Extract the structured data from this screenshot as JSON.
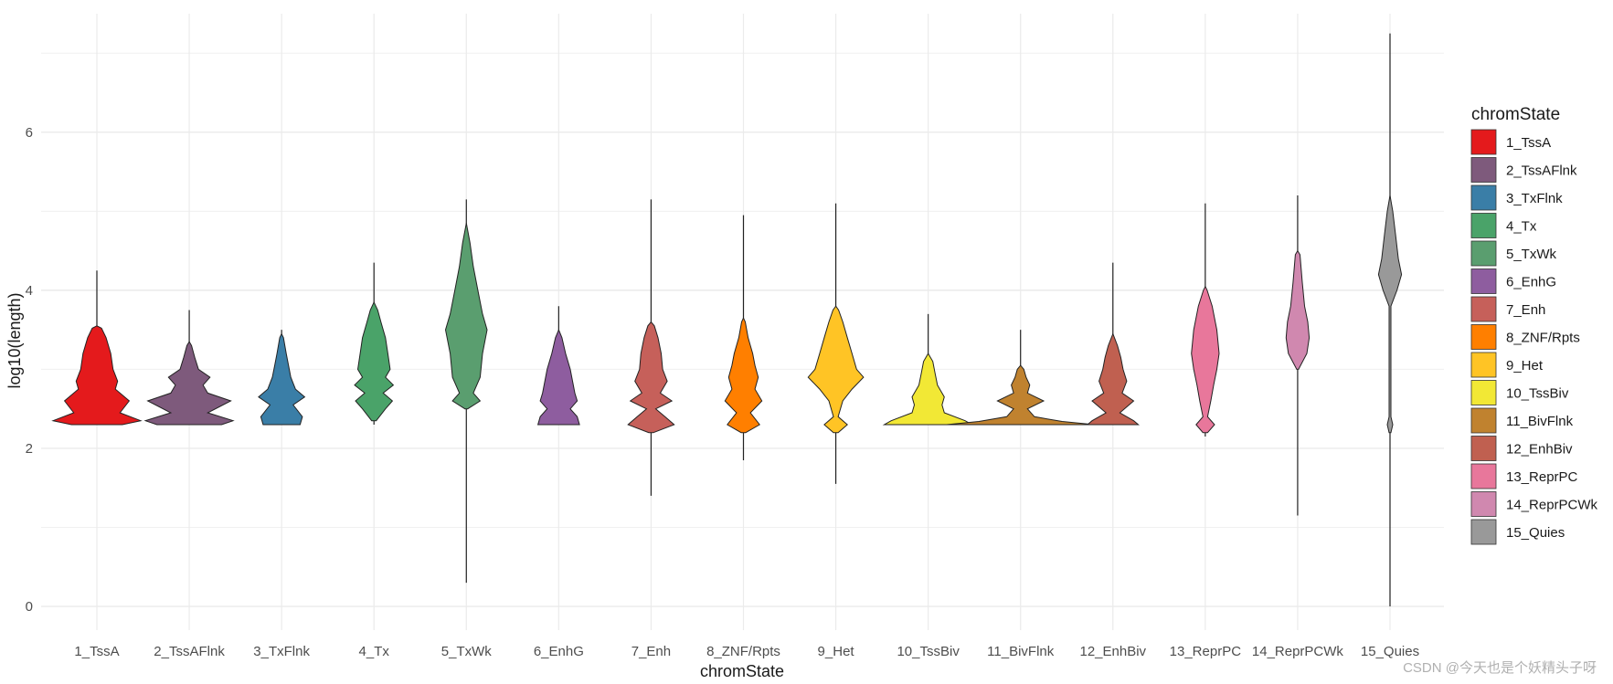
{
  "chart_data": {
    "type": "violin",
    "xlabel": "chromState",
    "ylabel": "log10(length)",
    "ylim": [
      -0.3,
      7.5
    ],
    "yticks": [
      0,
      2,
      4,
      6
    ],
    "grid": true,
    "legend_title": "chromState",
    "legend_position": "right",
    "series": [
      {
        "name": "1_TssA",
        "color": "#E41A1C",
        "whisker": [
          2.3,
          4.25
        ],
        "profile": [
          [
            2.3,
            0.55
          ],
          [
            2.35,
            0.95
          ],
          [
            2.45,
            0.5
          ],
          [
            2.6,
            0.7
          ],
          [
            2.75,
            0.4
          ],
          [
            2.85,
            0.45
          ],
          [
            3.0,
            0.35
          ],
          [
            3.2,
            0.3
          ],
          [
            3.4,
            0.2
          ],
          [
            3.52,
            0.1
          ],
          [
            3.55,
            0.0
          ]
        ]
      },
      {
        "name": "2_TssAFlnk",
        "color": "#7E5A7C",
        "whisker": [
          2.3,
          3.75
        ],
        "profile": [
          [
            2.3,
            0.7
          ],
          [
            2.35,
            0.95
          ],
          [
            2.45,
            0.4
          ],
          [
            2.6,
            0.9
          ],
          [
            2.7,
            0.4
          ],
          [
            2.8,
            0.3
          ],
          [
            2.9,
            0.45
          ],
          [
            3.0,
            0.2
          ],
          [
            3.15,
            0.12
          ],
          [
            3.3,
            0.05
          ],
          [
            3.35,
            0.0
          ]
        ]
      },
      {
        "name": "3_TxFlnk",
        "color": "#3A7EA7",
        "whisker": [
          2.3,
          3.5
        ],
        "profile": [
          [
            2.3,
            0.4
          ],
          [
            2.4,
            0.45
          ],
          [
            2.55,
            0.25
          ],
          [
            2.65,
            0.5
          ],
          [
            2.75,
            0.3
          ],
          [
            2.9,
            0.2
          ],
          [
            3.05,
            0.15
          ],
          [
            3.2,
            0.1
          ],
          [
            3.4,
            0.04
          ],
          [
            3.45,
            0.0
          ]
        ]
      },
      {
        "name": "4_Tx",
        "color": "#4AA369",
        "whisker": [
          2.3,
          4.35
        ],
        "profile": [
          [
            2.35,
            0.05
          ],
          [
            2.5,
            0.25
          ],
          [
            2.6,
            0.4
          ],
          [
            2.7,
            0.2
          ],
          [
            2.8,
            0.42
          ],
          [
            2.9,
            0.25
          ],
          [
            3.0,
            0.35
          ],
          [
            3.2,
            0.3
          ],
          [
            3.4,
            0.25
          ],
          [
            3.6,
            0.15
          ],
          [
            3.75,
            0.08
          ],
          [
            3.85,
            0.0
          ]
        ]
      },
      {
        "name": "5_TxWk",
        "color": "#5A9E6F",
        "whisker": [
          0.3,
          5.15
        ],
        "profile": [
          [
            2.5,
            0.03
          ],
          [
            2.6,
            0.3
          ],
          [
            2.7,
            0.15
          ],
          [
            2.9,
            0.3
          ],
          [
            3.2,
            0.35
          ],
          [
            3.5,
            0.45
          ],
          [
            3.7,
            0.35
          ],
          [
            4.0,
            0.25
          ],
          [
            4.3,
            0.15
          ],
          [
            4.6,
            0.08
          ],
          [
            4.85,
            0.0
          ]
        ]
      },
      {
        "name": "6_EnhG",
        "color": "#8E5D9F",
        "whisker": [
          2.3,
          3.8
        ],
        "profile": [
          [
            2.3,
            0.45
          ],
          [
            2.4,
            0.4
          ],
          [
            2.5,
            0.25
          ],
          [
            2.6,
            0.4
          ],
          [
            2.7,
            0.35
          ],
          [
            2.85,
            0.3
          ],
          [
            3.0,
            0.25
          ],
          [
            3.2,
            0.15
          ],
          [
            3.4,
            0.07
          ],
          [
            3.5,
            0.0
          ]
        ]
      },
      {
        "name": "7_Enh",
        "color": "#C6605A",
        "whisker": [
          1.4,
          5.15
        ],
        "profile": [
          [
            2.2,
            0.05
          ],
          [
            2.3,
            0.5
          ],
          [
            2.4,
            0.3
          ],
          [
            2.5,
            0.1
          ],
          [
            2.6,
            0.45
          ],
          [
            2.7,
            0.2
          ],
          [
            2.85,
            0.35
          ],
          [
            3.0,
            0.25
          ],
          [
            3.2,
            0.22
          ],
          [
            3.4,
            0.15
          ],
          [
            3.55,
            0.07
          ],
          [
            3.6,
            0.0
          ]
        ]
      },
      {
        "name": "8_ZNF/Rpts",
        "color": "#FF7F00",
        "whisker": [
          1.85,
          4.95
        ],
        "profile": [
          [
            2.2,
            0.05
          ],
          [
            2.3,
            0.35
          ],
          [
            2.45,
            0.15
          ],
          [
            2.6,
            0.4
          ],
          [
            2.75,
            0.25
          ],
          [
            2.9,
            0.32
          ],
          [
            3.05,
            0.25
          ],
          [
            3.2,
            0.2
          ],
          [
            3.4,
            0.1
          ],
          [
            3.6,
            0.04
          ],
          [
            3.65,
            0.0
          ]
        ]
      },
      {
        "name": "9_Het",
        "color": "#FFC425",
        "whisker": [
          1.55,
          5.1
        ],
        "profile": [
          [
            2.2,
            0.05
          ],
          [
            2.3,
            0.25
          ],
          [
            2.4,
            0.05
          ],
          [
            2.6,
            0.15
          ],
          [
            2.75,
            0.35
          ],
          [
            2.9,
            0.6
          ],
          [
            3.0,
            0.45
          ],
          [
            3.2,
            0.35
          ],
          [
            3.4,
            0.25
          ],
          [
            3.6,
            0.15
          ],
          [
            3.75,
            0.06
          ],
          [
            3.8,
            0.0
          ]
        ]
      },
      {
        "name": "10_TssBiv",
        "color": "#F2E835",
        "whisker": [
          2.3,
          3.7
        ],
        "profile": [
          [
            2.3,
            0.95
          ],
          [
            2.35,
            0.8
          ],
          [
            2.45,
            0.35
          ],
          [
            2.55,
            0.3
          ],
          [
            2.65,
            0.35
          ],
          [
            2.8,
            0.2
          ],
          [
            2.95,
            0.15
          ],
          [
            3.1,
            0.1
          ],
          [
            3.2,
            0.0
          ]
        ]
      },
      {
        "name": "11_BivFlnk",
        "color": "#C0822F",
        "whisker": [
          2.3,
          3.5
        ],
        "profile": [
          [
            2.3,
            1.6
          ],
          [
            2.34,
            0.9
          ],
          [
            2.4,
            0.3
          ],
          [
            2.5,
            0.15
          ],
          [
            2.6,
            0.5
          ],
          [
            2.7,
            0.15
          ],
          [
            2.8,
            0.2
          ],
          [
            2.9,
            0.12
          ],
          [
            3.0,
            0.07
          ],
          [
            3.05,
            0.0
          ]
        ]
      },
      {
        "name": "12_EnhBiv",
        "color": "#C06050",
        "whisker": [
          2.3,
          4.35
        ],
        "profile": [
          [
            2.3,
            0.55
          ],
          [
            2.35,
            0.45
          ],
          [
            2.45,
            0.15
          ],
          [
            2.6,
            0.45
          ],
          [
            2.7,
            0.2
          ],
          [
            2.85,
            0.3
          ],
          [
            3.0,
            0.22
          ],
          [
            3.15,
            0.17
          ],
          [
            3.3,
            0.1
          ],
          [
            3.45,
            0.0
          ]
        ]
      },
      {
        "name": "13_ReprPC",
        "color": "#E8779B",
        "whisker": [
          2.15,
          5.1
        ],
        "profile": [
          [
            2.2,
            0.05
          ],
          [
            2.3,
            0.2
          ],
          [
            2.4,
            0.05
          ],
          [
            2.6,
            0.12
          ],
          [
            2.8,
            0.18
          ],
          [
            3.0,
            0.25
          ],
          [
            3.2,
            0.3
          ],
          [
            3.5,
            0.25
          ],
          [
            3.8,
            0.15
          ],
          [
            4.0,
            0.04
          ],
          [
            4.05,
            0.0
          ]
        ]
      },
      {
        "name": "14_ReprPCWk",
        "color": "#D088AF",
        "whisker": [
          1.15,
          5.2
        ],
        "profile": [
          [
            3.0,
            0.02
          ],
          [
            3.2,
            0.2
          ],
          [
            3.4,
            0.25
          ],
          [
            3.6,
            0.22
          ],
          [
            3.8,
            0.15
          ],
          [
            4.1,
            0.1
          ],
          [
            4.45,
            0.05
          ],
          [
            4.5,
            0.0
          ]
        ]
      },
      {
        "name": "15_Quies",
        "color": "#999999",
        "whisker": [
          0.0,
          7.25
        ],
        "profile": [
          [
            2.2,
            0.02
          ],
          [
            2.3,
            0.06
          ],
          [
            2.4,
            0.02
          ],
          [
            3.8,
            0.02
          ],
          [
            4.0,
            0.15
          ],
          [
            4.2,
            0.25
          ],
          [
            4.4,
            0.18
          ],
          [
            4.7,
            0.12
          ],
          [
            5.0,
            0.06
          ],
          [
            5.2,
            0.0
          ]
        ]
      }
    ]
  },
  "watermark": "CSDN @今天也是个妖精头子呀"
}
